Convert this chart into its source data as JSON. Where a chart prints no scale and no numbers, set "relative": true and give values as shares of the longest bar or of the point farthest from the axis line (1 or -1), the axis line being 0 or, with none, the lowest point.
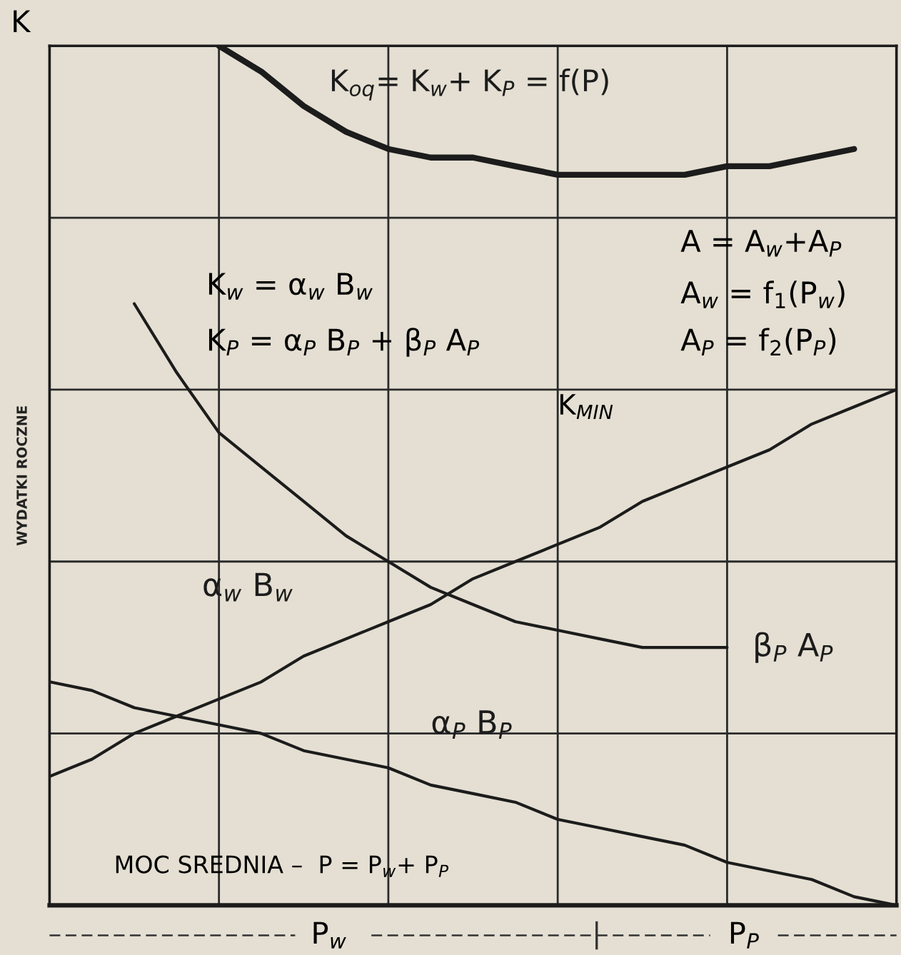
{
  "chart_data": {
    "type": "line",
    "relative": true,
    "ylabel": "WYDATKI ROCZNE",
    "categories": [
      null,
      null,
      null,
      null,
      null,
      null,
      null,
      null,
      null,
      null,
      null,
      null,
      null,
      null,
      null,
      null,
      null,
      null,
      null,
      null,
      null
    ],
    "grid": true,
    "legend": false,
    "marker": "none",
    "line_style": "solid",
    "series": [
      {
        "name": "K$_{oq}$= K$_{w}$+ K$_{P}$ = f(P)",
        "color": "#1c1c1c",
        "values": [
          null,
          null,
          null,
          null,
          1.0,
          0.97,
          0.93,
          0.9,
          0.88,
          0.87,
          0.87,
          0.86,
          0.85,
          0.85,
          0.85,
          0.85,
          0.86,
          0.86,
          0.87,
          0.88,
          null
        ]
      },
      {
        "name": "β$_{P}$ A$_{P}$",
        "color": "#1c1c1c",
        "values": [
          null,
          null,
          0.7,
          0.62,
          0.55,
          0.51,
          0.47,
          0.43,
          0.4,
          0.37,
          0.35,
          0.33,
          0.32,
          0.31,
          0.3,
          0.3,
          0.3,
          null,
          null,
          null,
          null
        ]
      },
      {
        "name": "α$_{w}$ B$_{w}$",
        "color": "#1c1c1c",
        "values": [
          0.15,
          0.17,
          0.2,
          0.22,
          0.24,
          0.26,
          0.29,
          0.31,
          0.33,
          0.35,
          0.38,
          0.4,
          0.42,
          0.44,
          0.47,
          0.49,
          0.51,
          0.53,
          0.56,
          0.58,
          0.6
        ]
      },
      {
        "name": "α$_{P}$ B$_{P}$",
        "color": "#1c1c1c",
        "values": [
          0.26,
          0.25,
          0.23,
          0.22,
          0.21,
          0.2,
          0.18,
          0.17,
          0.16,
          0.14,
          0.13,
          0.12,
          0.1,
          0.09,
          0.08,
          0.07,
          0.05,
          0.04,
          0.03,
          0.01,
          0
        ]
      }
    ],
    "annotations": [
      "K",
      "K$_{w}$ = α$_{w}$ B$_{w}$",
      "K$_{P}$ = α$_{P}$ B$_{P}$ + β$_{P}$ A$_{P}$",
      "A = A$_{w}$+A$_{P}$",
      "A$_{w}$ = f$_{1}$(P$_{w}$)",
      "A$_{P}$ = f$_{2}$(P$_{P}$)",
      "MOC SREDNIA –  P = P$_{w}$+ P$_{P}$",
      "P$_{w}$",
      "P$_{P}$",
      "K$_{MIN}$"
    ]
  }
}
